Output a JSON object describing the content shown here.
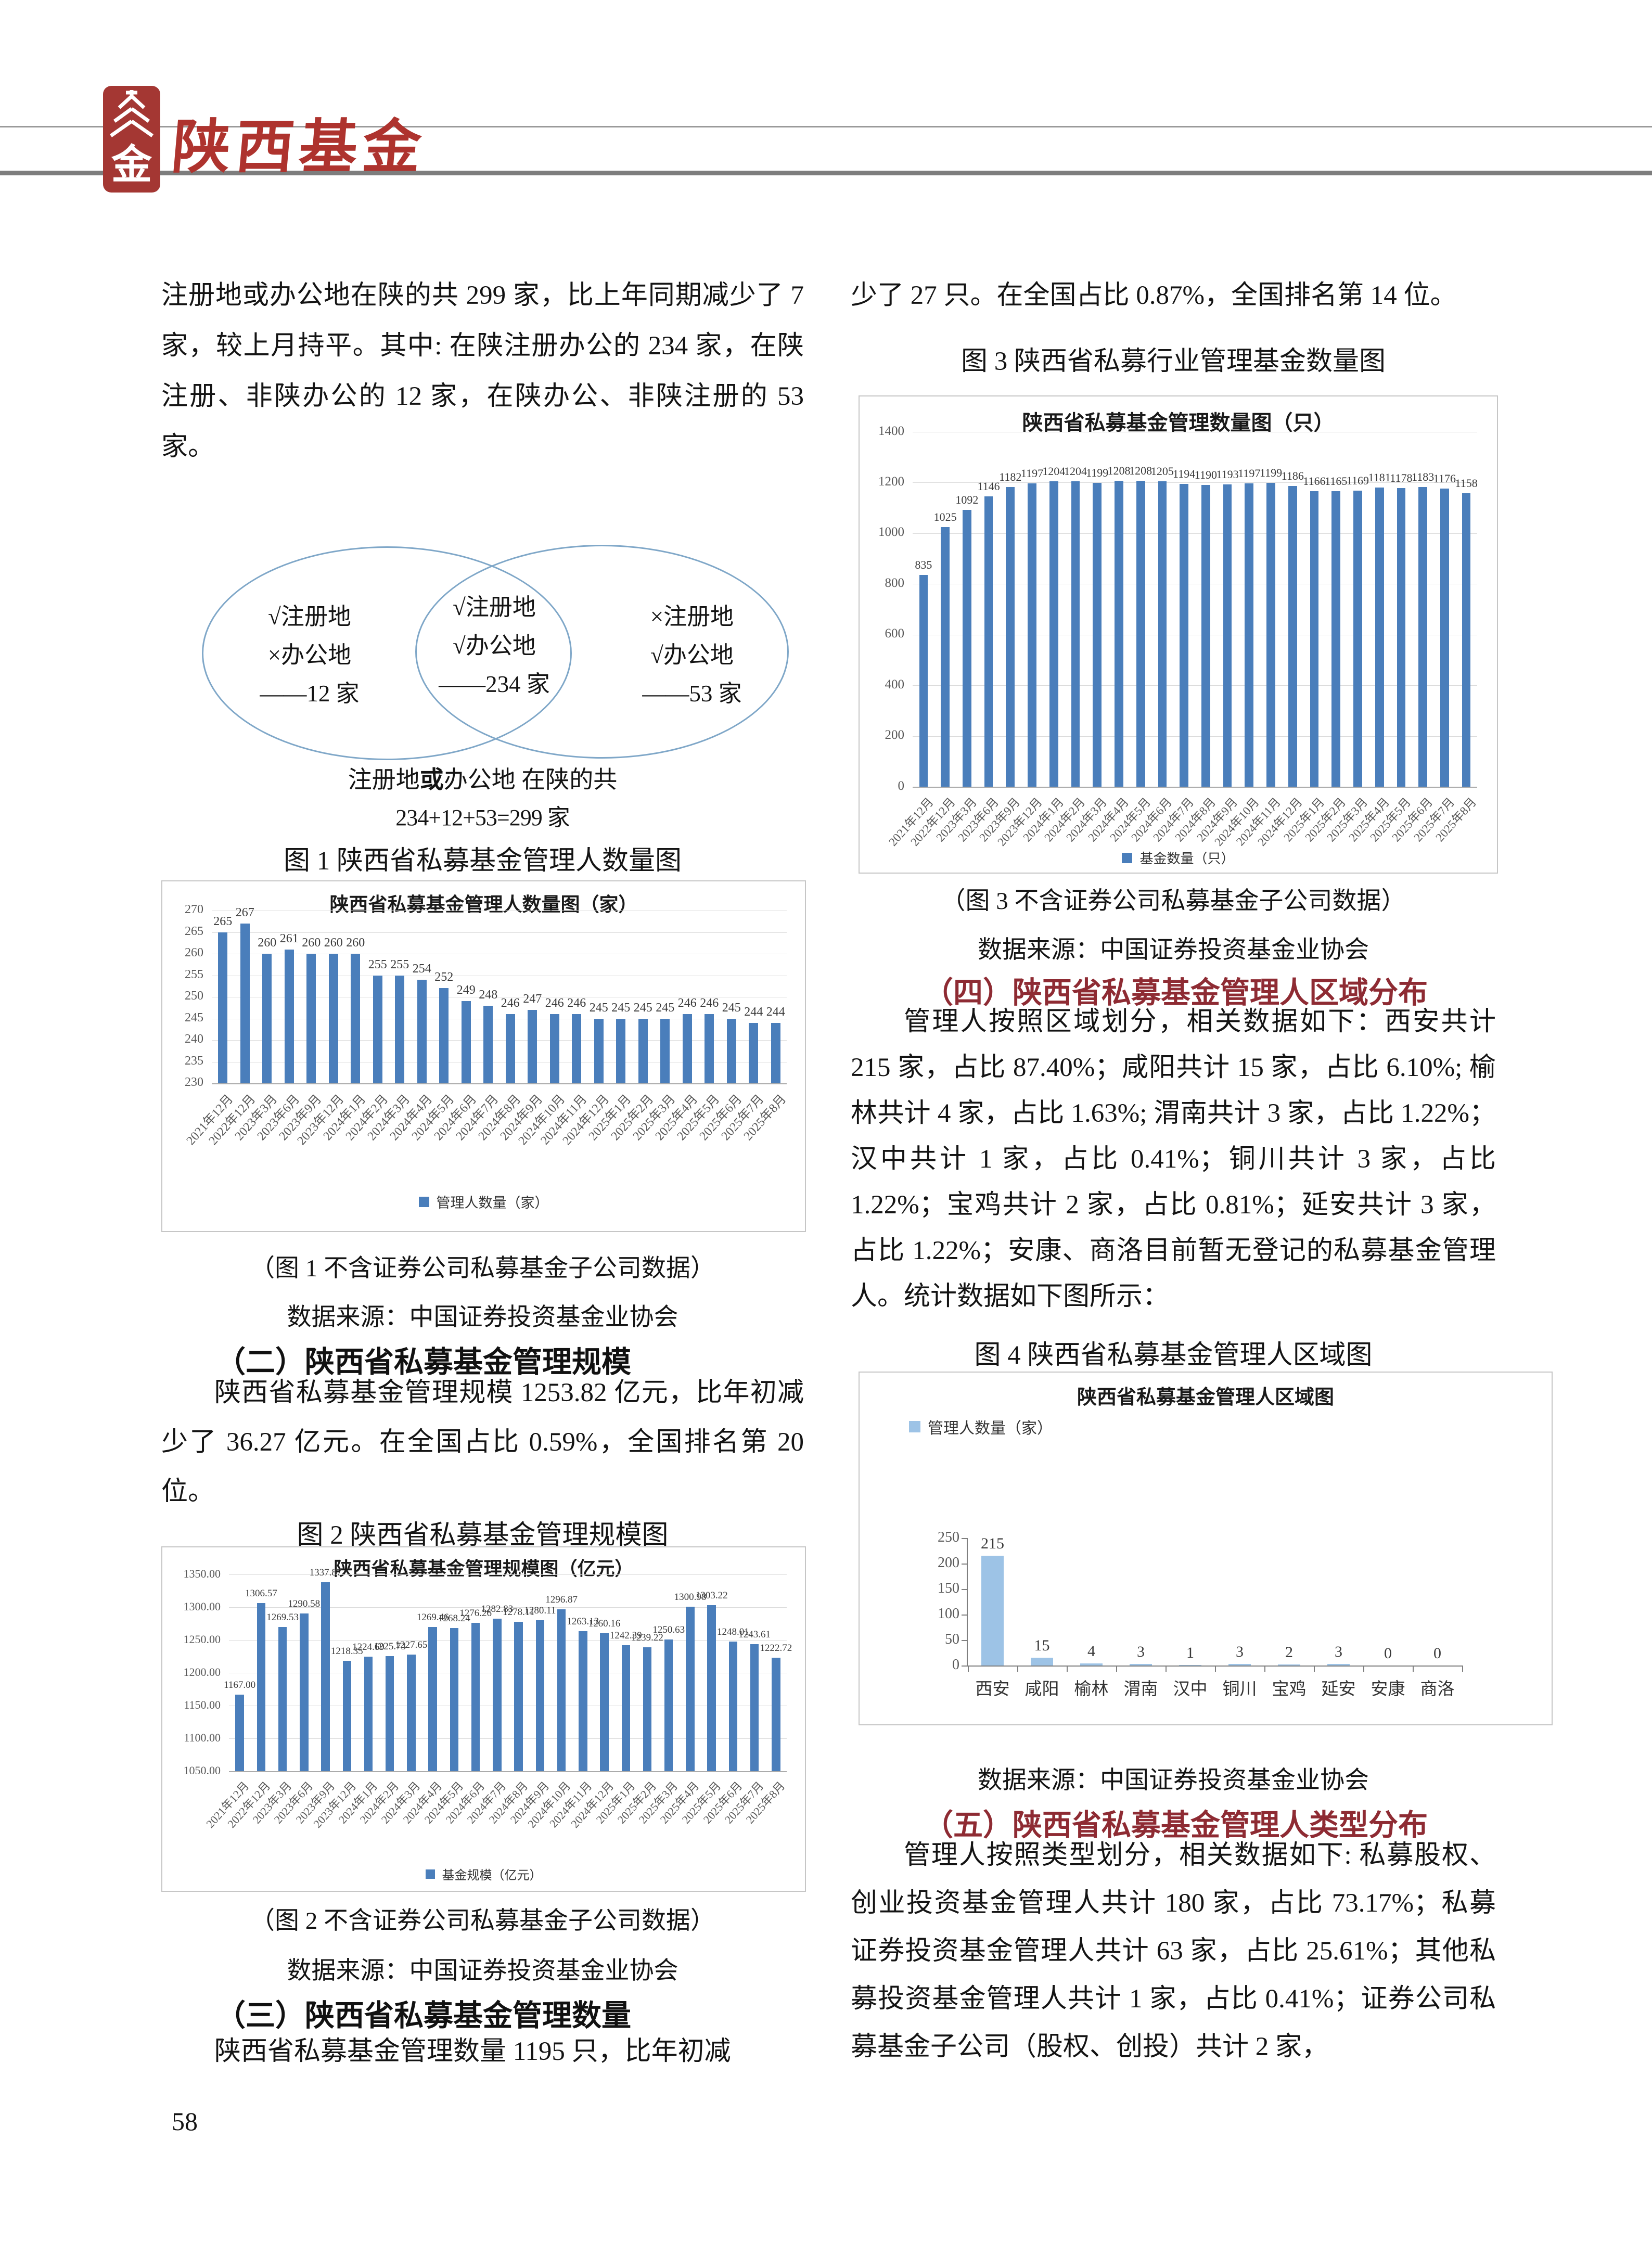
{
  "page": {
    "number": "58"
  },
  "header": {
    "brand_title": "陕西基金",
    "logo_glyph": "金"
  },
  "left_column": {
    "para1": "注册地或办公地在陕的共 299 家，比上年同期减少了 7 家，较上月持平。其中: 在陕注册办公的 234 家，在陕注册、非陕办公的 12 家，在陕办公、非陕注册的 53 家。",
    "venn": {
      "left_lines": [
        "√注册地",
        "×办公地",
        "——12 家"
      ],
      "middle_lines": [
        "√注册地",
        "√办公地",
        "——234 家"
      ],
      "right_lines": [
        "×注册地",
        "√办公地",
        "——53 家"
      ],
      "summary_pre": "注册地",
      "summary_or": "或",
      "summary_post": "办公地 在陕的共",
      "summary_line2": "234+12+53=299 家"
    },
    "fig1_caption": "图 1 陕西省私募基金管理人数量图",
    "fig1_note": "（图 1 不含证券公司私募基金子公司数据）",
    "fig1_source": "数据来源：中国证券投资基金业协会",
    "section2_heading": "（二）陕西省私募基金管理规模",
    "section2_text": "陕西省私募基金管理规模 1253.82 亿元，比年初减少了 36.27 亿元。在全国占比 0.59%，全国排名第 20 位。",
    "fig2_caption": "图 2 陕西省私募基金管理规模图",
    "fig2_note": "（图 2 不含证券公司私募基金子公司数据）",
    "fig2_source": "数据来源：中国证券投资基金业协会",
    "section3_heading": "（三）陕西省私募基金管理数量",
    "section3_text": "陕西省私募基金管理数量 1195 只，比年初减"
  },
  "right_column": {
    "para_top": "少了 27 只。在全国占比 0.87%，全国排名第 14 位。",
    "fig3_caption": "图 3 陕西省私募行业管理基金数量图",
    "fig3_note": "（图 3 不含证券公司私募基金子公司数据）",
    "fig3_source": "数据来源：中国证券投资基金业协会",
    "section4_heading": "（四）陕西省私募基金管理人区域分布",
    "section4_text": "管理人按照区域划分，相关数据如下：西安共计 215 家，占比 87.40%；咸阳共计 15 家，占比 6.10%; 榆林共计 4 家，占比 1.63%; 渭南共计 3 家，占比 1.22%；汉中共计 1 家，占比 0.41%；铜川共计 3 家，占比 1.22%；宝鸡共计 2 家，占比 0.81%；延安共计 3 家，占比 1.22%；安康、商洛目前暂无登记的私募基金管理人。统计数据如下图所示：",
    "fig4_caption": "图 4 陕西省私募基金管理人区域图",
    "fig4_source": "数据来源：中国证券投资基金业协会",
    "section5_heading": "（五）陕西省私募基金管理人类型分布",
    "section5_text": "管理人按照类型划分，相关数据如下: 私募股权、创业投资基金管理人共计 180 家，占比 73.17%；私募证券投资基金管理人共计 63 家，占比 25.61%；其他私募投资基金管理人共计 1 家，占比 0.41%；证券公司私募基金子公司（股权、创投）共计 2 家，"
  },
  "chart_data": [
    {
      "type": "bar",
      "title": "陕西省私募基金管理人数量图（家）",
      "categories": [
        "2021年12月",
        "2022年12月",
        "2023年3月",
        "2023年6月",
        "2023年9月",
        "2023年12月",
        "2024年1月",
        "2024年2月",
        "2024年3月",
        "2024年4月",
        "2024年5月",
        "2024年6月",
        "2024年7月",
        "2024年8月",
        "2024年9月",
        "2024年10月",
        "2024年11月",
        "2024年12月",
        "2025年1月",
        "2025年2月",
        "2025年3月",
        "2025年4月",
        "2025年5月",
        "2025年6月",
        "2025年7月",
        "2025年8月"
      ],
      "values": [
        265,
        267,
        260,
        261,
        260,
        260,
        260,
        255,
        255,
        254,
        252,
        249,
        248,
        246,
        247,
        246,
        246,
        245,
        245,
        245,
        245,
        246,
        246,
        245,
        244,
        244
      ],
      "ylim": [
        230,
        270
      ],
      "ystep": 5,
      "ytick_decimals": 0,
      "value_decimals": 0,
      "grid": true,
      "legend": "管理人数量（家）",
      "legend_position": "bottom",
      "bar_color": "#4a7ebb",
      "xlabel": "",
      "ylabel": ""
    },
    {
      "type": "bar",
      "title": "陕西省私募基金管理规模图（亿元）",
      "categories": [
        "2021年12月",
        "2022年12月",
        "2023年3月",
        "2023年6月",
        "2023年9月",
        "2023年12月",
        "2024年1月",
        "2024年2月",
        "2024年3月",
        "2024年4月",
        "2024年5月",
        "2024年6月",
        "2024年7月",
        "2024年8月",
        "2024年9月",
        "2024年10月",
        "2024年11月",
        "2024年12月",
        "2025年1月",
        "2025年2月",
        "2025年3月",
        "2025年4月",
        "2025年5月",
        "2025年6月",
        "2025年7月",
        "2025年8月"
      ],
      "values": [
        1167.0,
        1306.57,
        1269.53,
        1290.58,
        1337.87,
        1218.35,
        1224.69,
        1225.73,
        1227.65,
        1269.46,
        1268.24,
        1276.26,
        1282.83,
        1278.11,
        1280.11,
        1296.87,
        1263.13,
        1260.16,
        1242.39,
        1239.22,
        1250.63,
        1300.98,
        1303.22,
        1248.01,
        1243.61,
        1222.72
      ],
      "ylim": [
        1050,
        1350
      ],
      "ystep": 50,
      "ytick_decimals": 2,
      "value_decimals": 2,
      "grid": true,
      "legend": "基金规模（亿元）",
      "legend_position": "bottom",
      "bar_color": "#4a7ebb",
      "xlabel": "",
      "ylabel": ""
    },
    {
      "type": "bar",
      "title": "陕西省私募基金管理数量图（只）",
      "categories": [
        "2021年12月",
        "2022年12月",
        "2023年3月",
        "2023年6月",
        "2023年9月",
        "2023年12月",
        "2024年1月",
        "2024年2月",
        "2024年3月",
        "2024年4月",
        "2024年5月",
        "2024年6月",
        "2024年7月",
        "2024年8月",
        "2024年9月",
        "2024年10月",
        "2024年11月",
        "2024年12月",
        "2025年1月",
        "2025年2月",
        "2025年3月",
        "2025年4月",
        "2025年5月",
        "2025年6月",
        "2025年7月",
        "2025年8月"
      ],
      "values": [
        835,
        1025,
        1092,
        1146,
        1182,
        1197,
        1204,
        1204,
        1199,
        1208,
        1208,
        1205,
        1194,
        1190,
        1193,
        1197,
        1199,
        1186,
        1166,
        1165,
        1169,
        1181,
        1178,
        1183,
        1176,
        1158
      ],
      "ylim": [
        0,
        1400
      ],
      "ystep": 200,
      "ytick_decimals": 0,
      "value_decimals": 0,
      "grid": true,
      "legend": "基金数量（只）",
      "legend_position": "bottom",
      "bar_color": "#4a7ebb",
      "xlabel": "",
      "ylabel": ""
    },
    {
      "type": "bar",
      "title": "陕西省私募基金管理人区域图",
      "categories": [
        "西安",
        "咸阳",
        "榆林",
        "渭南",
        "汉中",
        "铜川",
        "宝鸡",
        "延安",
        "安康",
        "商洛"
      ],
      "values": [
        215,
        15,
        4,
        3,
        1,
        3,
        2,
        3,
        0,
        0
      ],
      "ylim": [
        0,
        250
      ],
      "ystep": 50,
      "ytick_decimals": 0,
      "value_decimals": 0,
      "grid": false,
      "legend": "管理人数量（家）",
      "legend_position": "top-left",
      "bar_color": "#9dc3e6",
      "xlabel": "",
      "ylabel": ""
    }
  ]
}
